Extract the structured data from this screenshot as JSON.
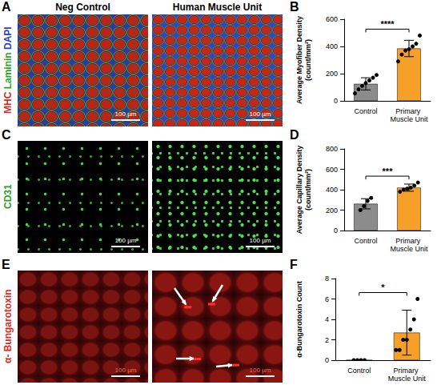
{
  "images": {
    "columns": [
      "Neg Control",
      "Human Muscle Unit"
    ],
    "rows": [
      {
        "panel": "A",
        "stain": [
          {
            "text": "MHC",
            "color": "#d62a22"
          },
          {
            "text": "Laminin",
            "color": "#2e9e2e"
          },
          {
            "text": "DAPI",
            "color": "#2a3fd0"
          }
        ],
        "scale_bar": "100 µm"
      },
      {
        "panel": "C",
        "stain": [
          {
            "text": "CD31",
            "color": "#2e9e2e"
          }
        ],
        "scale_bar": "100 µm"
      },
      {
        "panel": "E",
        "stain": [
          {
            "text": "α- Bungarotoxin",
            "color": "#d62a22"
          }
        ],
        "scale_bar": "100 µm"
      }
    ]
  },
  "chart_data": [
    {
      "panel": "B",
      "type": "bar",
      "ylabel": "Average Myofiber Density (count/mm²)",
      "categories": [
        "Control",
        "Primary Muscle Unit"
      ],
      "values": [
        125,
        385
      ],
      "errors": [
        45,
        60
      ],
      "points": [
        [
          55,
          85,
          110,
          130,
          150,
          170,
          190
        ],
        [
          290,
          340,
          370,
          380,
          400,
          420,
          480
        ]
      ],
      "colors": [
        "#8c8c8c",
        "#f7a028"
      ],
      "ylim": [
        0,
        600
      ],
      "yticks": [
        0,
        200,
        400,
        600
      ],
      "grid": false,
      "significance": "****"
    },
    {
      "panel": "D",
      "type": "bar",
      "ylabel": "Average Capillary Density (count/mm²)",
      "categories": [
        "Control",
        "Primary Muscle Unit"
      ],
      "values": [
        262,
        420
      ],
      "errors": [
        50,
        35
      ],
      "points": [
        [
          200,
          240,
          290,
          320
        ],
        [
          380,
          400,
          410,
          420,
          440,
          470
        ]
      ],
      "colors": [
        "#8c8c8c",
        "#f7a028"
      ],
      "ylim": [
        0,
        800
      ],
      "yticks": [
        0,
        200,
        400,
        600,
        800
      ],
      "grid": false,
      "significance": "***"
    },
    {
      "panel": "F",
      "type": "bar",
      "ylabel": "α-Bungarotoxin Count",
      "categories": [
        "Control",
        "Primary Muscle Unit"
      ],
      "values": [
        0,
        2.7
      ],
      "errors": [
        0,
        2.2
      ],
      "points": [
        [
          0,
          0,
          0,
          0
        ],
        [
          1,
          1,
          2,
          2,
          3,
          4,
          6
        ]
      ],
      "colors": [
        "#8c8c8c",
        "#f7a028"
      ],
      "ylim": [
        0,
        8
      ],
      "yticks": [
        0,
        2,
        4,
        6,
        8
      ],
      "grid": false,
      "significance": "*"
    }
  ]
}
